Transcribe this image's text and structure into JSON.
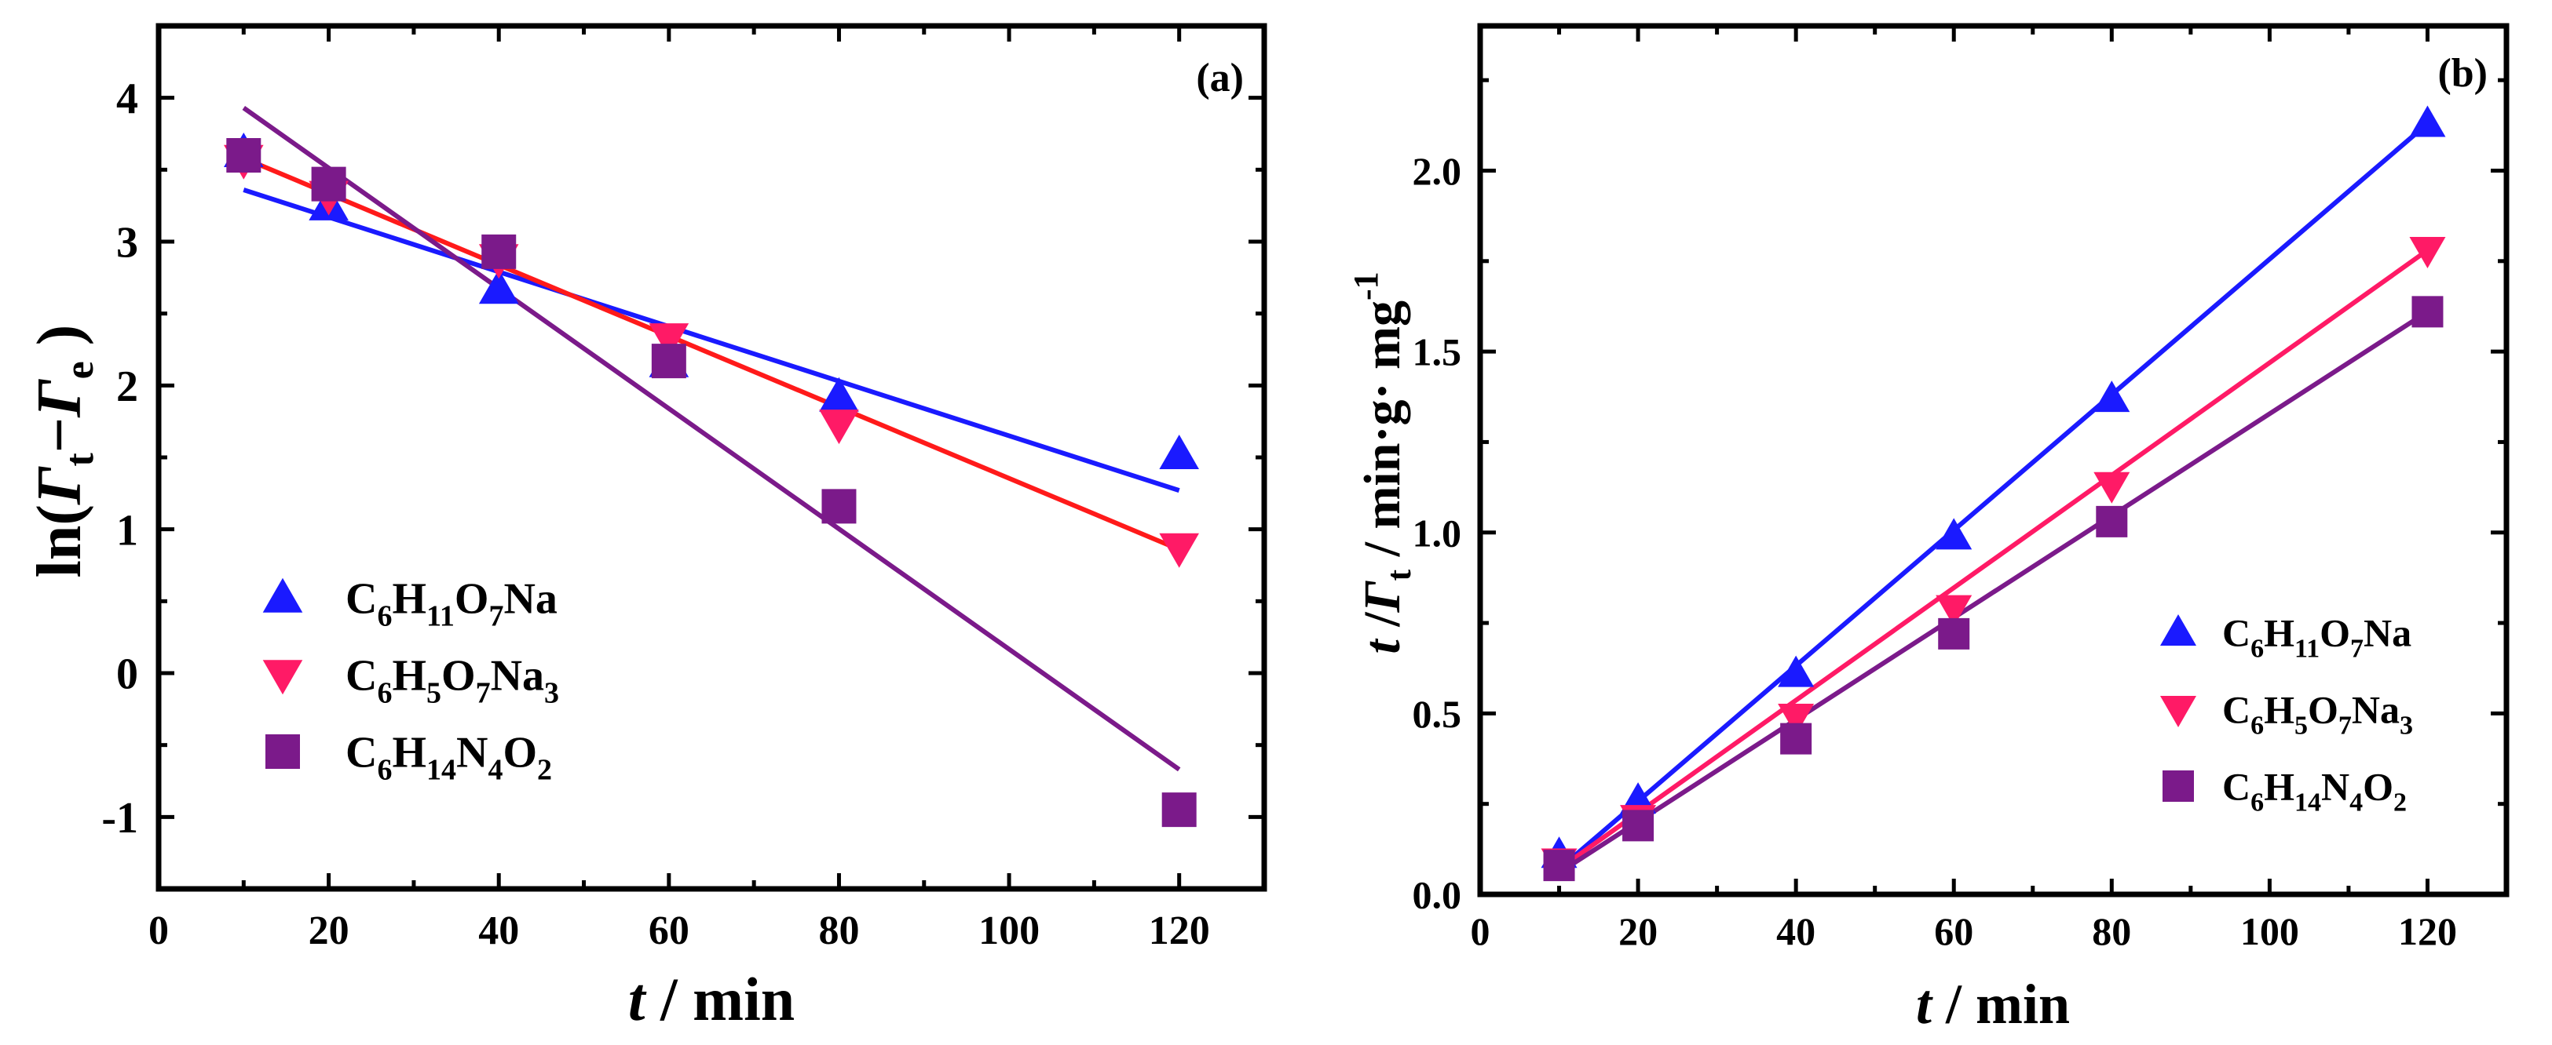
{
  "chart_data": [
    {
      "id": "a",
      "type": "scatter",
      "panel_label": "(a)",
      "xlabel_italic": "t",
      "xlabel_rest": " / min",
      "ylabel_prefix": "ln(",
      "ylabel_g1": "Γ",
      "ylabel_s1": "t",
      "ylabel_minus": "−",
      "ylabel_g2": "Γ",
      "ylabel_s2": "e",
      "ylabel_suffix": " )",
      "xlim": [
        0,
        130
      ],
      "ylim": [
        -1.5,
        4.5
      ],
      "xticks": [
        0,
        20,
        40,
        60,
        80,
        100,
        120
      ],
      "yticks": [
        -1,
        0,
        1,
        2,
        3,
        4
      ],
      "legend_position": "center-left",
      "series": [
        {
          "name": "C6H11O7Na",
          "legend": [
            [
              "C",
              ""
            ],
            [
              "6",
              "sub"
            ],
            [
              "H",
              ""
            ],
            [
              "11",
              "sub"
            ],
            [
              "O",
              ""
            ],
            [
              "7",
              "sub"
            ],
            [
              "Na",
              ""
            ]
          ],
          "marker": "triangle-up",
          "color": "#1a1aff",
          "x": [
            10,
            20,
            40,
            60,
            80,
            120
          ],
          "y": [
            3.62,
            3.25,
            2.67,
            2.16,
            1.92,
            1.52
          ],
          "fit": [
            [
              10,
              3.36
            ],
            [
              120,
              1.27
            ]
          ]
        },
        {
          "name": "C6H5O7Na3",
          "legend": [
            [
              "C",
              ""
            ],
            [
              "6",
              "sub"
            ],
            [
              "H",
              ""
            ],
            [
              "5",
              "sub"
            ],
            [
              "O",
              ""
            ],
            [
              "7",
              "sub"
            ],
            [
              "Na",
              ""
            ],
            [
              "3",
              "sub"
            ]
          ],
          "marker": "triangle-down",
          "color": "#ff1a66",
          "line_color": "#ff1a1a",
          "x": [
            10,
            20,
            40,
            60,
            80,
            120
          ],
          "y": [
            3.57,
            3.32,
            2.88,
            2.33,
            1.73,
            0.87
          ],
          "fit": [
            [
              10,
              3.58
            ],
            [
              120,
              0.86
            ]
          ]
        },
        {
          "name": "C6H14N4O2",
          "legend": [
            [
              "C",
              ""
            ],
            [
              "6",
              "sub"
            ],
            [
              "H",
              ""
            ],
            [
              "14",
              "sub"
            ],
            [
              "N",
              ""
            ],
            [
              "4",
              "sub"
            ],
            [
              "O",
              ""
            ],
            [
              "2",
              "sub"
            ]
          ],
          "marker": "square",
          "color": "#7b1a8a",
          "x": [
            10,
            20,
            40,
            60,
            80,
            120
          ],
          "y": [
            3.6,
            3.4,
            2.93,
            2.17,
            1.16,
            -0.95
          ],
          "fit": [
            [
              10,
              3.93
            ],
            [
              120,
              -0.67
            ]
          ]
        }
      ]
    },
    {
      "id": "b",
      "type": "scatter",
      "panel_label": "(b)",
      "xlabel_italic": "t",
      "xlabel_rest": " / min",
      "ylabel_t": "t",
      "ylabel_slash": " /",
      "ylabel_g": "Γ",
      "ylabel_s": "t",
      "ylabel_unit": " / min·g· mg",
      "ylabel_sup": "-1",
      "xlim": [
        0,
        130
      ],
      "ylim": [
        0,
        2.4
      ],
      "xticks": [
        0,
        20,
        40,
        60,
        80,
        100,
        120
      ],
      "yticks": [
        "0.0",
        "0.5",
        "1.0",
        "1.5",
        "2.0"
      ],
      "legend_position": "lower-right",
      "series": [
        {
          "name": "C6H11O7Na",
          "legend": [
            [
              "C",
              ""
            ],
            [
              "6",
              "sub"
            ],
            [
              "H",
              ""
            ],
            [
              "11",
              "sub"
            ],
            [
              "O",
              ""
            ],
            [
              "7",
              "sub"
            ],
            [
              "Na",
              ""
            ]
          ],
          "marker": "triangle-up",
          "color": "#1a1aff",
          "x": [
            10,
            20,
            40,
            60,
            80,
            120
          ],
          "y": [
            0.11,
            0.26,
            0.61,
            0.99,
            1.37,
            2.13
          ],
          "fit": [
            [
              10,
              0.07
            ],
            [
              120,
              2.13
            ]
          ]
        },
        {
          "name": "C6H5O7Na3",
          "legend": [
            [
              "C",
              ""
            ],
            [
              "6",
              "sub"
            ],
            [
              "H",
              ""
            ],
            [
              "5",
              "sub"
            ],
            [
              "O",
              ""
            ],
            [
              "7",
              "sub"
            ],
            [
              "Na",
              ""
            ],
            [
              "3",
              "sub"
            ]
          ],
          "marker": "triangle-down",
          "color": "#ff1a66",
          "x": [
            10,
            20,
            40,
            60,
            80,
            120
          ],
          "y": [
            0.09,
            0.21,
            0.49,
            0.79,
            1.13,
            1.78
          ],
          "fit": [
            [
              10,
              0.07
            ],
            [
              120,
              1.78
            ]
          ]
        },
        {
          "name": "C6H14N4O2",
          "legend": [
            [
              "C",
              ""
            ],
            [
              "6",
              "sub"
            ],
            [
              "H",
              ""
            ],
            [
              "14",
              "sub"
            ],
            [
              "N",
              ""
            ],
            [
              "4",
              "sub"
            ],
            [
              "O",
              ""
            ],
            [
              "2",
              "sub"
            ]
          ],
          "marker": "square",
          "color": "#7b1a8a",
          "x": [
            10,
            20,
            40,
            60,
            80,
            120
          ],
          "y": [
            0.08,
            0.19,
            0.43,
            0.72,
            1.03,
            1.61
          ],
          "fit": [
            [
              10,
              0.06
            ],
            [
              120,
              1.61
            ]
          ]
        }
      ]
    }
  ]
}
